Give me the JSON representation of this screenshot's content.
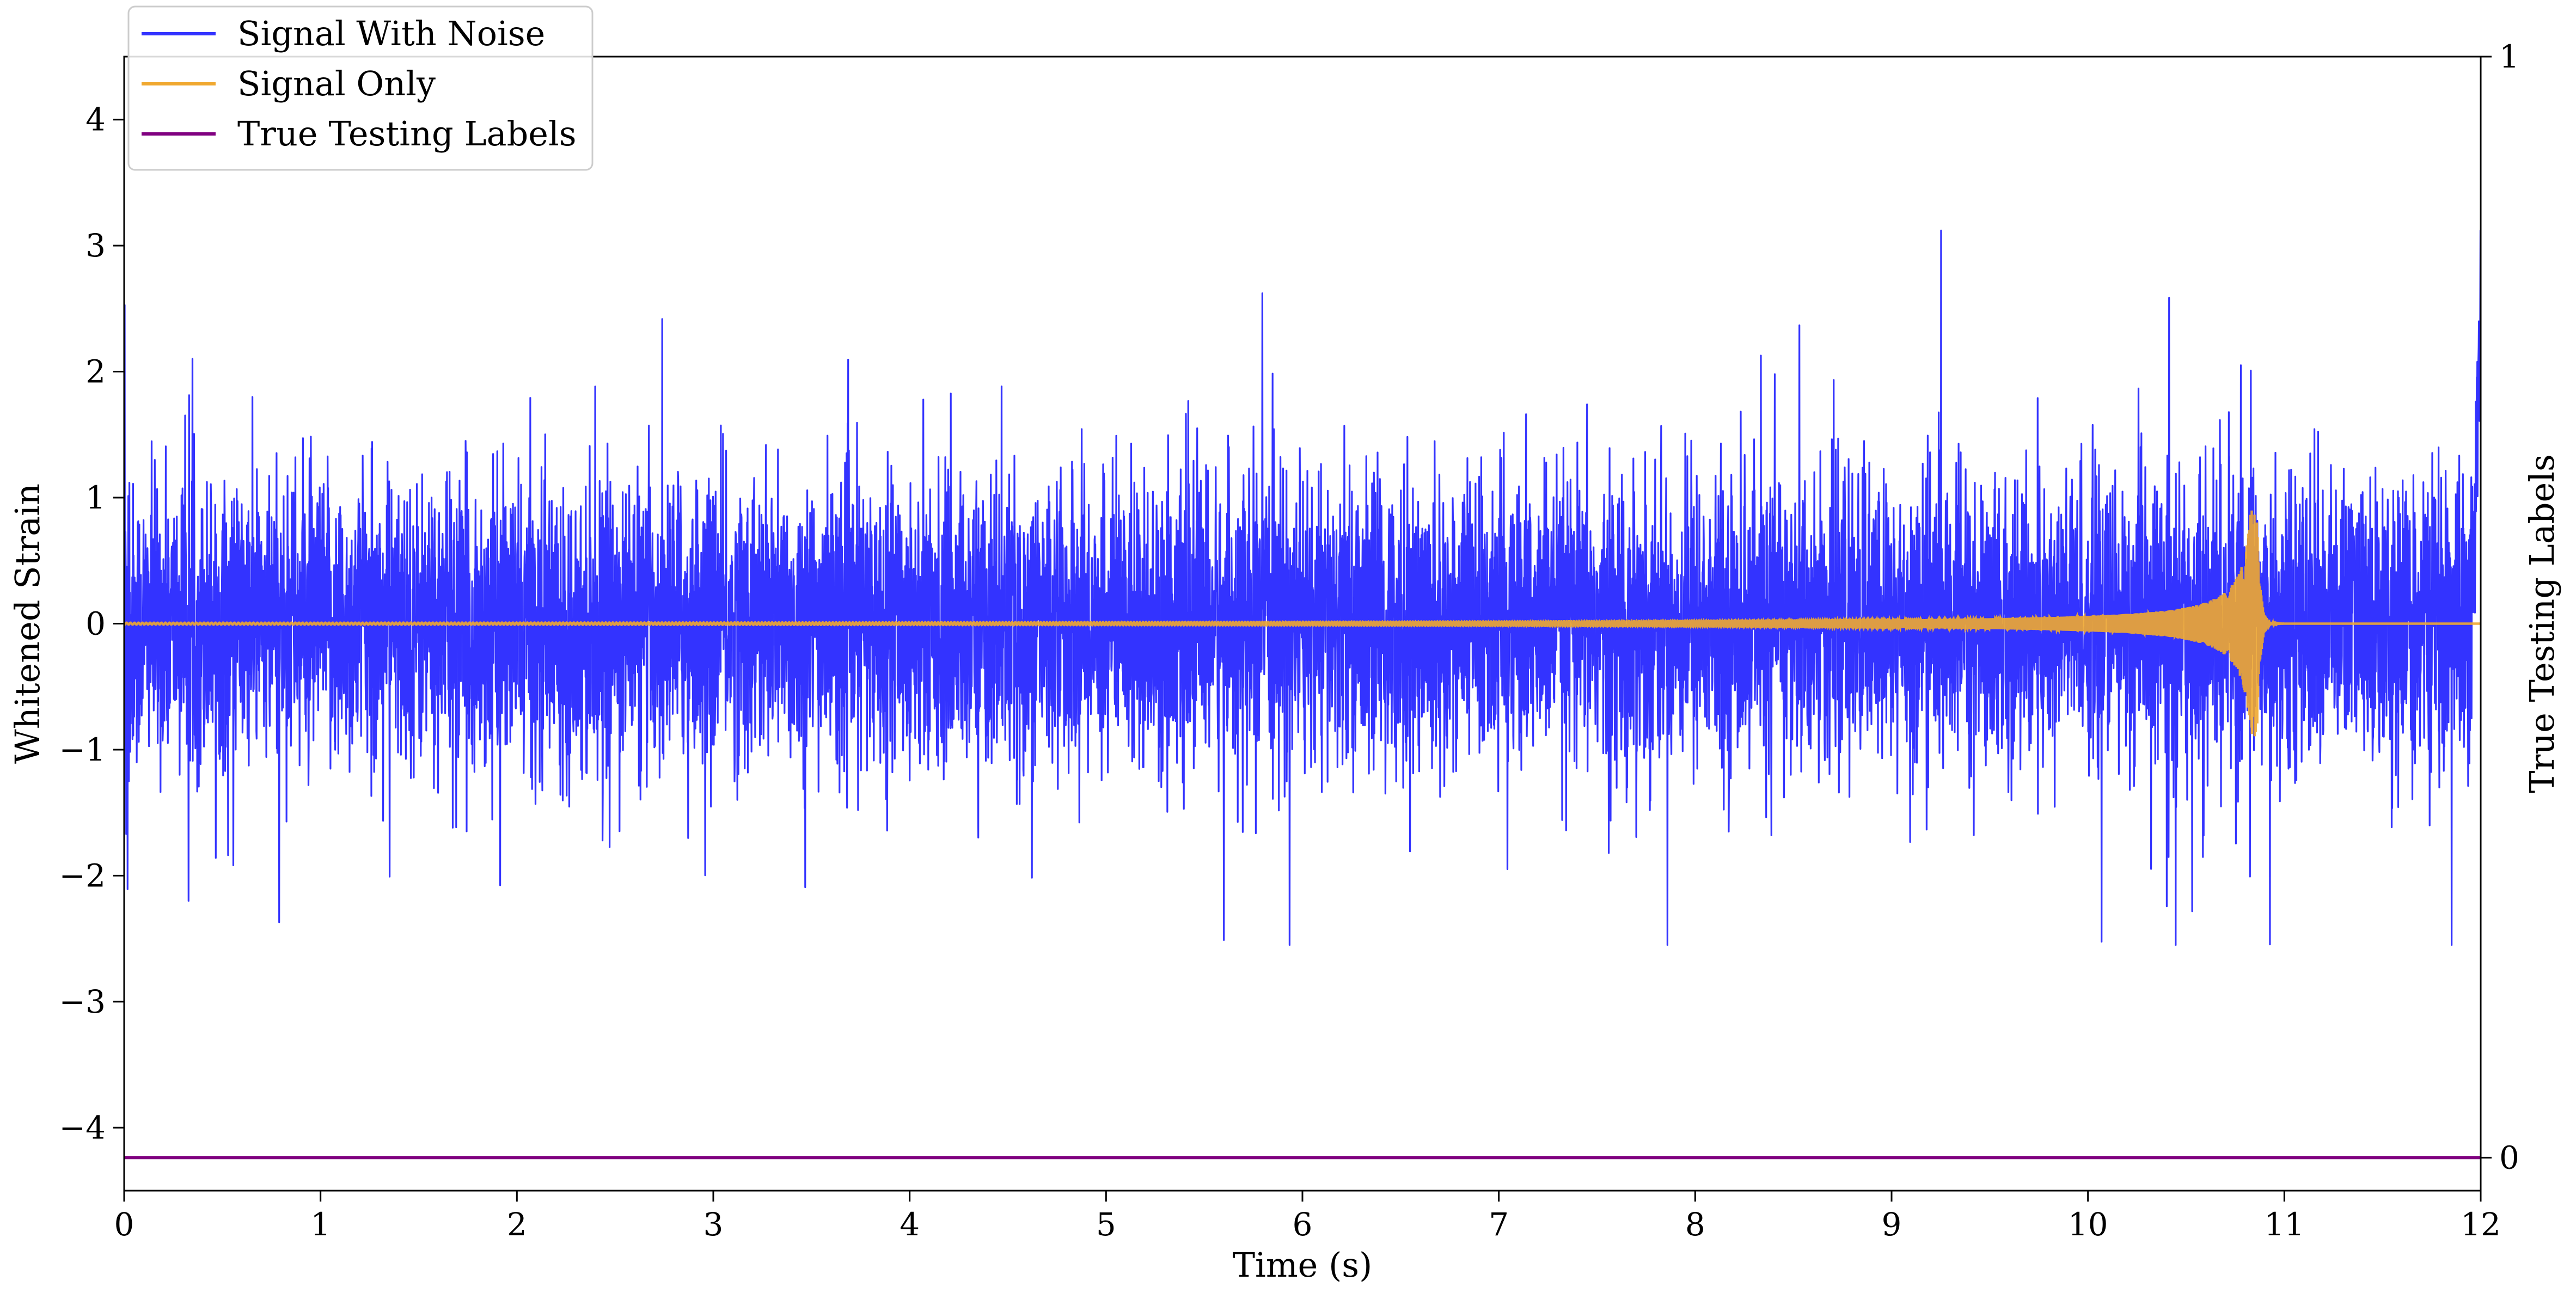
{
  "chart_data": {
    "type": "line",
    "title": "",
    "xlabel": "Time (s)",
    "ylabel": "Whitened Strain",
    "y2label": "True Testing Labels",
    "xlim": [
      0,
      12
    ],
    "ylim": [
      -4.5,
      4.5
    ],
    "y2lim": [
      -0.03,
      1.0
    ],
    "x_ticks": [
      0,
      1,
      2,
      3,
      4,
      5,
      6,
      7,
      8,
      9,
      10,
      11,
      12
    ],
    "y_ticks": [
      -4,
      -3,
      -2,
      -1,
      0,
      1,
      2,
      3,
      4
    ],
    "y2_ticks": [
      0,
      1
    ],
    "grid": false,
    "legend_position": "top-left",
    "series": [
      {
        "name": "Signal With Noise",
        "color": "#3333ff",
        "axis": "left",
        "description_values": {
          "baseline_envelope": [
            -1.2,
            1.2
          ],
          "max_peaks": [
            [
              2.01,
              2.44
            ],
            [
              9.02,
              2.41
            ],
            [
              11.99,
              3.1
            ]
          ],
          "min_peaks": [
            [
              2.65,
              -2.4
            ],
            [
              10.65,
              -2.52
            ],
            [
              0.0,
              -2.8
            ]
          ]
        }
      },
      {
        "name": "Signal Only",
        "color": "#f0a830",
        "axis": "left",
        "chirp": {
          "start_x": 0,
          "merger_x": 10.86,
          "end_x": 12,
          "peak_amplitude": 0.9,
          "start_amplitude": 0.02
        }
      },
      {
        "name": "True Testing Labels",
        "color": "#800080",
        "axis": "right",
        "x": [
          0,
          12
        ],
        "y": [
          0,
          0
        ]
      }
    ]
  }
}
